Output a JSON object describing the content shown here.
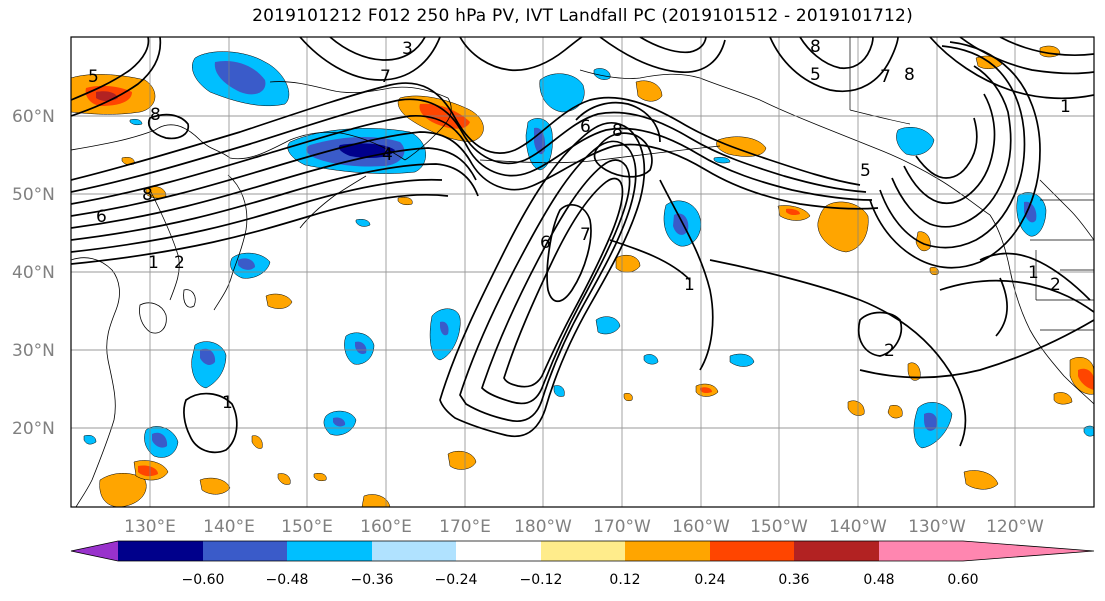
{
  "title": "2019101212 F012 250 hPa PV, IVT Landfall PC (2019101512 - 2019101712)",
  "lat_labels": [
    "60°N",
    "50°N",
    "40°N",
    "30°N",
    "20°N"
  ],
  "lon_labels": [
    "130°E",
    "140°E",
    "150°E",
    "160°E",
    "170°E",
    "180°W",
    "170°W",
    "160°W",
    "150°W",
    "140°W",
    "130°W",
    "120°W"
  ],
  "colorbar": {
    "colors": [
      "#9932cc",
      "#00008b",
      "#3a5bc9",
      "#00bfff",
      "#b0e2ff",
      "#ffffff",
      "#ffec8b",
      "#ffa500",
      "#ff4500",
      "#b22222",
      "#ff86b0"
    ],
    "tick_labels": [
      "−0.60",
      "−0.48",
      "−0.36",
      "−0.24",
      "−0.12",
      "0.12",
      "0.24",
      "0.36",
      "0.48",
      "0.60"
    ]
  },
  "contour_labels": [
    "5",
    "3",
    "7",
    "8",
    "6",
    "8",
    "6",
    "8",
    "6",
    "7",
    "1",
    "1",
    "2",
    "1",
    "1",
    "2",
    "8",
    "5",
    "7",
    "8",
    "4",
    "5",
    "1",
    "2"
  ]
}
